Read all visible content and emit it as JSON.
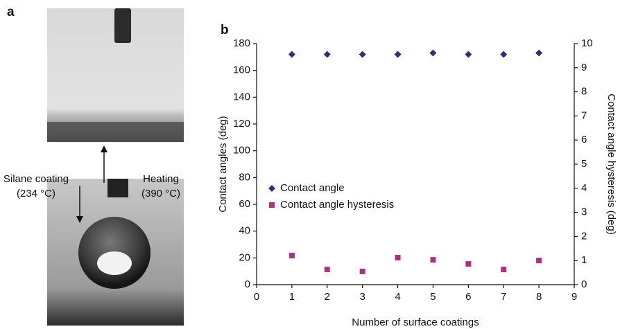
{
  "panel_a": {
    "label": "a",
    "left_label": [
      "Silane coating",
      "(234 °C)"
    ],
    "right_label": [
      "Heating",
      "(390 °C)"
    ]
  },
  "chart_data": {
    "type": "scatter",
    "panel_label": "b",
    "x_label": "Number of surface coatings",
    "y_label": "Contact angles (deg)",
    "y2_label": "Contact angle hysteresis (deg)",
    "x": [
      1,
      2,
      3,
      4,
      5,
      6,
      7,
      8
    ],
    "series": [
      {
        "name": "Contact angle",
        "color": "#2e2e7a",
        "marker": "diamond",
        "values": [
          172,
          172,
          172,
          172,
          173,
          172,
          172,
          173
        ]
      },
      {
        "name": "Contact angle hysteresis",
        "color": "#b0307f",
        "marker": "square",
        "axis": "y2",
        "values": [
          1.21,
          0.63,
          0.55,
          1.12,
          1.03,
          0.86,
          0.63,
          1.0
        ]
      }
    ],
    "xlim": [
      0,
      9
    ],
    "xticks": [
      0,
      1,
      2,
      3,
      4,
      5,
      6,
      7,
      8,
      9
    ],
    "ylim": [
      0,
      180
    ],
    "yticks": [
      0,
      20,
      40,
      60,
      80,
      100,
      120,
      140,
      160,
      180
    ],
    "y2lim": [
      0,
      10
    ],
    "y2ticks": [
      0,
      1,
      2,
      3,
      4,
      5,
      6,
      7,
      8,
      9,
      10
    ],
    "legend": "center-left",
    "grid": false
  }
}
